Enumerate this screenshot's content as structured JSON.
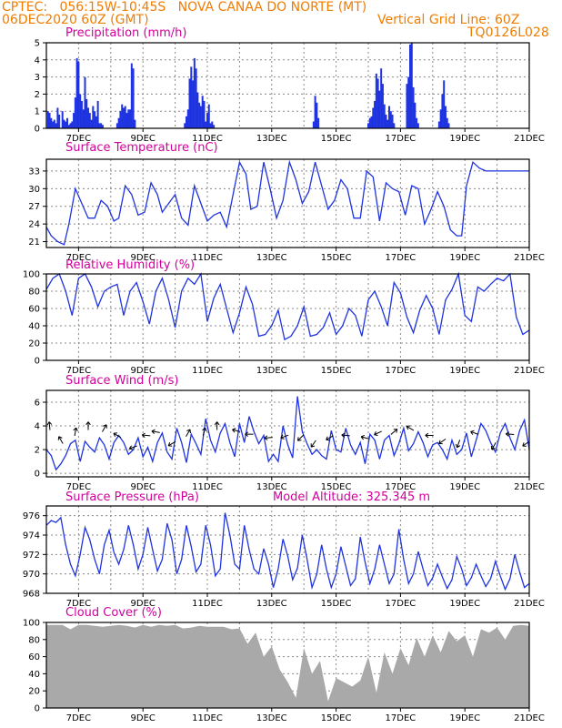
{
  "header": {
    "line1": "CPTEC:   056:15W-10:45S   NOVA CANAA DO NORTE (MT)",
    "line2_left": "06DEC2020 60Z (GMT)",
    "line2_right": "Vertical Grid Line: 60Z",
    "line3_right": "TQ0126L028"
  },
  "colors": {
    "header": "#f07c00",
    "panel_title": "#d1009b",
    "series": "#1f33e0",
    "cloud": "#a9a9a9"
  },
  "chart_data": [
    {
      "type": "bar",
      "title": "Precipitation (mm/h)",
      "ylim": [
        0,
        5
      ],
      "yticks": [
        "0",
        "1",
        "2",
        "3",
        "4",
        "5"
      ],
      "xticks": [
        "7DEC",
        "9DEC",
        "11DEC",
        "13DEC",
        "15DEC",
        "17DEC",
        "19DEC",
        "21DEC"
      ],
      "x_unit": "day offset from 06DEC 00Z",
      "x": [
        0.05,
        0.1,
        0.15,
        0.2,
        0.25,
        0.3,
        0.35,
        0.4,
        0.5,
        0.55,
        0.6,
        0.65,
        0.7,
        0.75,
        0.8,
        0.85,
        0.9,
        0.95,
        1.0,
        1.05,
        1.1,
        1.15,
        1.2,
        1.25,
        1.3,
        1.35,
        1.4,
        1.45,
        1.5,
        1.55,
        1.6,
        1.65,
        1.7,
        1.75,
        2.2,
        2.25,
        2.3,
        2.35,
        2.4,
        2.45,
        2.5,
        2.55,
        2.6,
        2.65,
        2.7,
        2.75,
        4.3,
        4.35,
        4.4,
        4.45,
        4.5,
        4.55,
        4.6,
        4.65,
        4.7,
        4.75,
        4.8,
        4.85,
        4.9,
        4.95,
        5.0,
        5.05,
        5.1,
        5.15,
        5.2,
        8.3,
        8.35,
        8.4,
        8.45,
        10.0,
        10.05,
        10.1,
        10.15,
        10.2,
        10.25,
        10.3,
        10.35,
        10.4,
        10.45,
        10.5,
        10.55,
        10.6,
        10.65,
        10.7,
        10.75,
        10.8,
        11.2,
        11.25,
        11.3,
        11.35,
        11.4,
        11.45,
        11.5,
        11.55,
        12.2,
        12.25,
        12.3,
        12.35,
        12.4,
        12.45,
        12.5
      ],
      "values": [
        1.0,
        0.9,
        0.6,
        0.4,
        0.5,
        0.3,
        1.2,
        0.8,
        1.0,
        0.5,
        0.4,
        0.6,
        0.2,
        0.3,
        0.4,
        0.9,
        1.8,
        4.1,
        3.9,
        2.0,
        1.6,
        1.1,
        3.0,
        1.7,
        1.2,
        0.9,
        0.5,
        1.3,
        1.0,
        0.7,
        1.6,
        0.3,
        0.3,
        0.2,
        0.3,
        0.6,
        1.0,
        1.4,
        1.2,
        1.3,
        0.9,
        1.1,
        1.1,
        3.8,
        3.5,
        0.5,
        0.3,
        0.7,
        1.1,
        2.9,
        3.6,
        2.8,
        4.1,
        3.5,
        2.1,
        1.5,
        1.3,
        1.9,
        1.6,
        0.4,
        0.9,
        1.4,
        0.3,
        0.4,
        0.2,
        0.4,
        1.9,
        1.5,
        0.6,
        0.3,
        0.6,
        0.7,
        1.2,
        1.6,
        3.2,
        2.9,
        2.2,
        3.5,
        2.6,
        1.4,
        0.8,
        0.5,
        1.3,
        1.0,
        0.8,
        0.3,
        2.6,
        3.0,
        4.9,
        5.0,
        2.4,
        1.5,
        0.6,
        0.3,
        0.4,
        1.1,
        2.0,
        2.8,
        1.3,
        0.6,
        0.3
      ]
    },
    {
      "type": "line",
      "title": "Surface Temperature (nC)",
      "ylim": [
        20,
        35
      ],
      "yticks": [
        "21",
        "24",
        "27",
        "30",
        "33"
      ],
      "xticks": [
        "7DEC",
        "9DEC",
        "11DEC",
        "13DEC",
        "15DEC",
        "17DEC",
        "19DEC",
        "21DEC"
      ],
      "x_unit": "day offset from 06DEC 00Z",
      "x": [
        0.0,
        0.15,
        0.35,
        0.55,
        0.7,
        0.9,
        1.1,
        1.3,
        1.5,
        1.7,
        1.9,
        2.1,
        2.25,
        2.45,
        2.65,
        2.85,
        3.05,
        3.25,
        3.45,
        3.6,
        3.8,
        4.0,
        4.2,
        4.4,
        4.6,
        4.8,
        5.0,
        5.2,
        5.4,
        5.6,
        5.8,
        6.0,
        6.2,
        6.35,
        6.55,
        6.75,
        6.95,
        7.15,
        7.35,
        7.55,
        7.75,
        7.95,
        8.15,
        8.35,
        8.55,
        8.75,
        8.95,
        9.15,
        9.35,
        9.55,
        9.75,
        9.95,
        10.15,
        10.35,
        10.55,
        10.75,
        10.95,
        11.15,
        11.35,
        11.55,
        11.75,
        11.95,
        12.15,
        12.35,
        12.55,
        12.75,
        12.9,
        13.05,
        13.25,
        13.45,
        13.65,
        13.85,
        14.05,
        14.25,
        14.45,
        14.6,
        14.8,
        15.0
      ],
      "values": [
        23.5,
        22.0,
        21.0,
        20.5,
        24.0,
        30.0,
        27.5,
        25.0,
        25.0,
        28.0,
        27.0,
        24.5,
        25.0,
        30.5,
        29.0,
        25.5,
        26.0,
        31.0,
        29.0,
        26.0,
        27.5,
        29.0,
        25.0,
        23.8,
        30.5,
        27.5,
        24.5,
        25.5,
        26.0,
        23.5,
        29.0,
        34.5,
        32.5,
        26.5,
        27.0,
        34.5,
        30.0,
        25.0,
        28.0,
        34.5,
        31.5,
        27.5,
        29.5,
        34.5,
        30.5,
        26.5,
        28.0,
        31.5,
        30.0,
        25.0,
        25.0,
        33.0,
        32.0,
        24.5,
        31.0,
        30.0,
        29.5,
        25.5,
        30.5,
        30.0,
        24.0,
        26.5,
        29.5,
        27.0,
        23.0,
        22.0,
        22.0,
        30.5,
        34.5,
        33.5,
        33.0,
        33.0,
        33.0,
        33.0,
        33.0,
        33.0,
        33.0,
        33.0
      ]
    },
    {
      "type": "line",
      "title": "Relative Humidity (%)",
      "ylim": [
        0,
        100
      ],
      "yticks": [
        "0",
        "20",
        "40",
        "60",
        "80",
        "100"
      ],
      "xticks": [
        "7DEC",
        "9DEC",
        "11DEC",
        "13DEC",
        "15DEC",
        "17DEC",
        "19DEC",
        "21DEC"
      ],
      "x_unit": "day offset from 06DEC 00Z",
      "x": [
        0.0,
        0.2,
        0.4,
        0.6,
        0.8,
        1.0,
        1.2,
        1.4,
        1.6,
        1.8,
        2.0,
        2.2,
        2.4,
        2.6,
        2.8,
        3.0,
        3.2,
        3.4,
        3.6,
        3.8,
        4.0,
        4.2,
        4.4,
        4.6,
        4.8,
        5.0,
        5.2,
        5.4,
        5.6,
        5.8,
        6.0,
        6.2,
        6.4,
        6.6,
        6.8,
        7.0,
        7.2,
        7.4,
        7.6,
        7.8,
        8.0,
        8.2,
        8.4,
        8.6,
        8.8,
        9.0,
        9.2,
        9.4,
        9.6,
        9.8,
        10.0,
        10.2,
        10.4,
        10.6,
        10.8,
        11.0,
        11.2,
        11.4,
        11.6,
        11.8,
        12.0,
        12.2,
        12.4,
        12.6,
        12.8,
        13.0,
        13.2,
        13.4,
        13.6,
        13.8,
        14.0,
        14.2,
        14.4,
        14.6,
        14.8,
        15.0
      ],
      "values": [
        82,
        95,
        100,
        80,
        52,
        95,
        100,
        85,
        62,
        80,
        85,
        88,
        52,
        80,
        90,
        68,
        42,
        80,
        95,
        70,
        38,
        80,
        95,
        88,
        100,
        45,
        72,
        88,
        60,
        32,
        55,
        85,
        65,
        28,
        30,
        40,
        58,
        24,
        28,
        40,
        62,
        28,
        30,
        38,
        55,
        30,
        40,
        60,
        52,
        28,
        70,
        80,
        62,
        40,
        90,
        78,
        50,
        32,
        58,
        75,
        60,
        30,
        70,
        82,
        100,
        52,
        45,
        85,
        80,
        88,
        95,
        92,
        100,
        50,
        30,
        35
      ]
    },
    {
      "type": "line",
      "title": "Surface Wind (m/s)",
      "ylim": [
        -0.3,
        7
      ],
      "yticks": [
        "0",
        "2",
        "4",
        "6"
      ],
      "xticks": [
        "7DEC",
        "9DEC",
        "11DEC",
        "13DEC",
        "15DEC",
        "17DEC",
        "19DEC",
        "21DEC"
      ],
      "x_unit": "day offset from 06DEC 00Z",
      "x": [
        0.0,
        0.15,
        0.3,
        0.45,
        0.6,
        0.75,
        0.9,
        1.05,
        1.2,
        1.35,
        1.5,
        1.65,
        1.8,
        1.95,
        2.1,
        2.25,
        2.4,
        2.55,
        2.7,
        2.85,
        3.0,
        3.15,
        3.3,
        3.45,
        3.6,
        3.75,
        3.9,
        4.05,
        4.2,
        4.35,
        4.5,
        4.65,
        4.8,
        4.95,
        5.1,
        5.25,
        5.4,
        5.55,
        5.7,
        5.85,
        6.0,
        6.15,
        6.3,
        6.45,
        6.6,
        6.75,
        6.9,
        7.05,
        7.2,
        7.35,
        7.5,
        7.65,
        7.8,
        7.95,
        8.1,
        8.25,
        8.4,
        8.55,
        8.7,
        8.85,
        9.0,
        9.15,
        9.3,
        9.45,
        9.6,
        9.75,
        9.9,
        10.05,
        10.2,
        10.35,
        10.5,
        10.65,
        10.8,
        10.95,
        11.1,
        11.25,
        11.4,
        11.55,
        11.7,
        11.85,
        12.0,
        12.15,
        12.3,
        12.45,
        12.6,
        12.75,
        12.9,
        13.05,
        13.2,
        13.35,
        13.5,
        13.65,
        13.8,
        13.95,
        14.1,
        14.25,
        14.4,
        14.55,
        14.7,
        14.85,
        15.0
      ],
      "values": [
        2.0,
        1.5,
        0.3,
        0.8,
        1.5,
        2.5,
        2.8,
        1.0,
        2.7,
        2.2,
        1.8,
        3.0,
        2.4,
        1.2,
        2.6,
        3.2,
        2.6,
        1.6,
        2.0,
        3.0,
        1.4,
        2.2,
        1.0,
        2.6,
        3.4,
        1.8,
        1.2,
        3.8,
        2.6,
        0.9,
        3.3,
        2.5,
        1.6,
        4.6,
        2.8,
        1.8,
        3.4,
        4.2,
        2.6,
        1.4,
        4.2,
        2.6,
        4.8,
        3.5,
        2.5,
        3.2,
        1.0,
        1.6,
        1.0,
        4.0,
        2.4,
        1.3,
        6.5,
        3.5,
        2.5,
        1.6,
        2.0,
        1.5,
        1.2,
        3.6,
        2.0,
        1.8,
        3.8,
        2.4,
        1.6,
        2.6,
        0.8,
        3.3,
        2.8,
        1.2,
        2.8,
        3.2,
        1.5,
        2.5,
        3.8,
        1.9,
        2.5,
        3.5,
        2.6,
        1.4,
        2.4,
        2.6,
        2.0,
        1.2,
        2.8,
        1.6,
        2.0,
        3.4,
        1.4,
        2.8,
        4.2,
        3.6,
        2.6,
        1.8,
        3.4,
        4.2,
        3.0,
        2.0,
        3.6,
        4.5,
        2.0
      ]
    },
    {
      "type": "line",
      "title": "Surface Pressure (hPa)",
      "annotation": "Model Altitude: 325.345 m",
      "ylim": [
        968,
        977
      ],
      "yticks": [
        "968",
        "970",
        "972",
        "974",
        "976"
      ],
      "xticks": [
        "7DEC",
        "9DEC",
        "11DEC",
        "13DEC",
        "15DEC",
        "17DEC",
        "19DEC",
        "21DEC"
      ],
      "x_unit": "day offset from 06DEC 00Z",
      "x": [
        0.0,
        0.15,
        0.3,
        0.45,
        0.6,
        0.75,
        0.9,
        1.05,
        1.2,
        1.35,
        1.5,
        1.65,
        1.8,
        1.95,
        2.1,
        2.25,
        2.4,
        2.55,
        2.7,
        2.85,
        3.0,
        3.15,
        3.3,
        3.45,
        3.6,
        3.75,
        3.9,
        4.05,
        4.2,
        4.35,
        4.5,
        4.65,
        4.8,
        4.95,
        5.1,
        5.25,
        5.4,
        5.55,
        5.7,
        5.85,
        6.0,
        6.15,
        6.3,
        6.45,
        6.6,
        6.75,
        6.9,
        7.05,
        7.2,
        7.35,
        7.5,
        7.65,
        7.8,
        7.95,
        8.1,
        8.25,
        8.4,
        8.55,
        8.7,
        8.85,
        9.0,
        9.15,
        9.3,
        9.45,
        9.6,
        9.75,
        9.9,
        10.05,
        10.2,
        10.35,
        10.5,
        10.65,
        10.8,
        10.95,
        11.1,
        11.25,
        11.4,
        11.55,
        11.7,
        11.85,
        12.0,
        12.15,
        12.3,
        12.45,
        12.6,
        12.75,
        12.9,
        13.05,
        13.2,
        13.35,
        13.5,
        13.65,
        13.8,
        13.95,
        14.1,
        14.25,
        14.4,
        14.55,
        14.7,
        14.85,
        15.0
      ],
      "values": [
        975.0,
        975.5,
        975.3,
        975.8,
        973.0,
        971.0,
        969.8,
        972.0,
        974.8,
        973.5,
        971.5,
        970.0,
        973.0,
        974.5,
        972.2,
        971.0,
        972.5,
        975.0,
        973.0,
        970.5,
        972.0,
        974.8,
        972.5,
        970.3,
        971.5,
        975.2,
        973.5,
        970.0,
        971.5,
        975.0,
        972.8,
        970.2,
        971.0,
        975.0,
        973.0,
        969.8,
        970.5,
        976.3,
        974.0,
        971.0,
        970.5,
        975.0,
        972.5,
        970.5,
        970.0,
        972.6,
        971.0,
        968.6,
        970.5,
        973.6,
        971.8,
        969.4,
        970.6,
        974.0,
        971.5,
        968.6,
        970.0,
        973.0,
        970.5,
        968.6,
        970.0,
        972.8,
        970.8,
        968.8,
        969.5,
        973.8,
        971.2,
        969.0,
        970.5,
        973.0,
        971.0,
        969.0,
        970.0,
        974.6,
        971.5,
        969.0,
        970.0,
        972.3,
        970.5,
        968.8,
        969.6,
        971.0,
        969.7,
        968.5,
        969.4,
        971.8,
        970.5,
        968.8,
        969.6,
        971.0,
        969.8,
        968.7,
        969.5,
        971.3,
        969.8,
        968.4,
        969.5,
        972.0,
        970.2,
        968.6,
        969.0
      ]
    },
    {
      "type": "area",
      "title": "Cloud Cover (%)",
      "ylim": [
        0,
        100
      ],
      "yticks": [
        "0",
        "20",
        "40",
        "60",
        "80",
        "100"
      ],
      "xticks": [
        "7DEC",
        "9DEC",
        "11DEC",
        "13DEC",
        "15DEC",
        "17DEC",
        "19DEC",
        "21DEC"
      ],
      "x_unit": "day offset from 06DEC 00Z",
      "x": [
        0.0,
        0.25,
        0.5,
        0.75,
        1.0,
        1.25,
        1.5,
        1.75,
        2.0,
        2.25,
        2.5,
        2.75,
        3.0,
        3.25,
        3.5,
        3.75,
        4.0,
        4.25,
        4.5,
        4.75,
        5.0,
        5.25,
        5.5,
        5.75,
        6.0,
        6.25,
        6.5,
        6.75,
        7.0,
        7.25,
        7.5,
        7.75,
        8.0,
        8.25,
        8.5,
        8.75,
        9.0,
        9.25,
        9.5,
        9.75,
        10.0,
        10.25,
        10.5,
        10.75,
        11.0,
        11.25,
        11.5,
        11.75,
        12.0,
        12.25,
        12.5,
        12.75,
        13.0,
        13.25,
        13.5,
        13.75,
        14.0,
        14.25,
        14.5,
        14.75,
        15.0
      ],
      "values": [
        97,
        97,
        97,
        92,
        97,
        97,
        96,
        95,
        96,
        97,
        96,
        94,
        97,
        95,
        97,
        96,
        97,
        93,
        94,
        96,
        95,
        95,
        95,
        92,
        93,
        75,
        88,
        60,
        72,
        45,
        30,
        12,
        70,
        40,
        55,
        8,
        35,
        30,
        25,
        32,
        60,
        18,
        65,
        40,
        70,
        50,
        82,
        60,
        85,
        65,
        90,
        78,
        85,
        60,
        92,
        88,
        94,
        80,
        96,
        97,
        96
      ]
    }
  ],
  "wind_arrows": {
    "x": [
      0.1,
      0.45,
      0.9,
      1.3,
      1.8,
      2.2,
      2.7,
      3.1,
      3.4,
      3.9,
      4.4,
      4.9,
      5.3,
      5.9,
      6.3,
      6.9,
      7.4,
      7.9,
      8.3,
      8.8,
      9.3,
      9.9,
      10.3,
      10.8,
      11.3,
      11.9,
      12.3,
      12.8,
      13.3,
      13.9,
      14.4,
      14.9
    ],
    "y": [
      4.0,
      2.8,
      3.5,
      4.0,
      3.8,
      3.2,
      2.2,
      3.2,
      3.5,
      2.5,
      3.4,
      3.5,
      4.0,
      3.6,
      3.3,
      3.0,
      3.1,
      3.0,
      2.5,
      3.0,
      3.2,
      3.0,
      3.4,
      3.5,
      3.8,
      3.2,
      2.7,
      2.5,
      3.4,
      2.3,
      3.3,
      2.5
    ],
    "angle_deg": [
      95,
      120,
      80,
      90,
      60,
      150,
      200,
      175,
      170,
      210,
      60,
      75,
      90,
      165,
      180,
      185,
      200,
      225,
      235,
      210,
      175,
      165,
      205,
      40,
      150,
      180,
      215,
      250,
      160,
      240,
      175,
      215
    ]
  }
}
